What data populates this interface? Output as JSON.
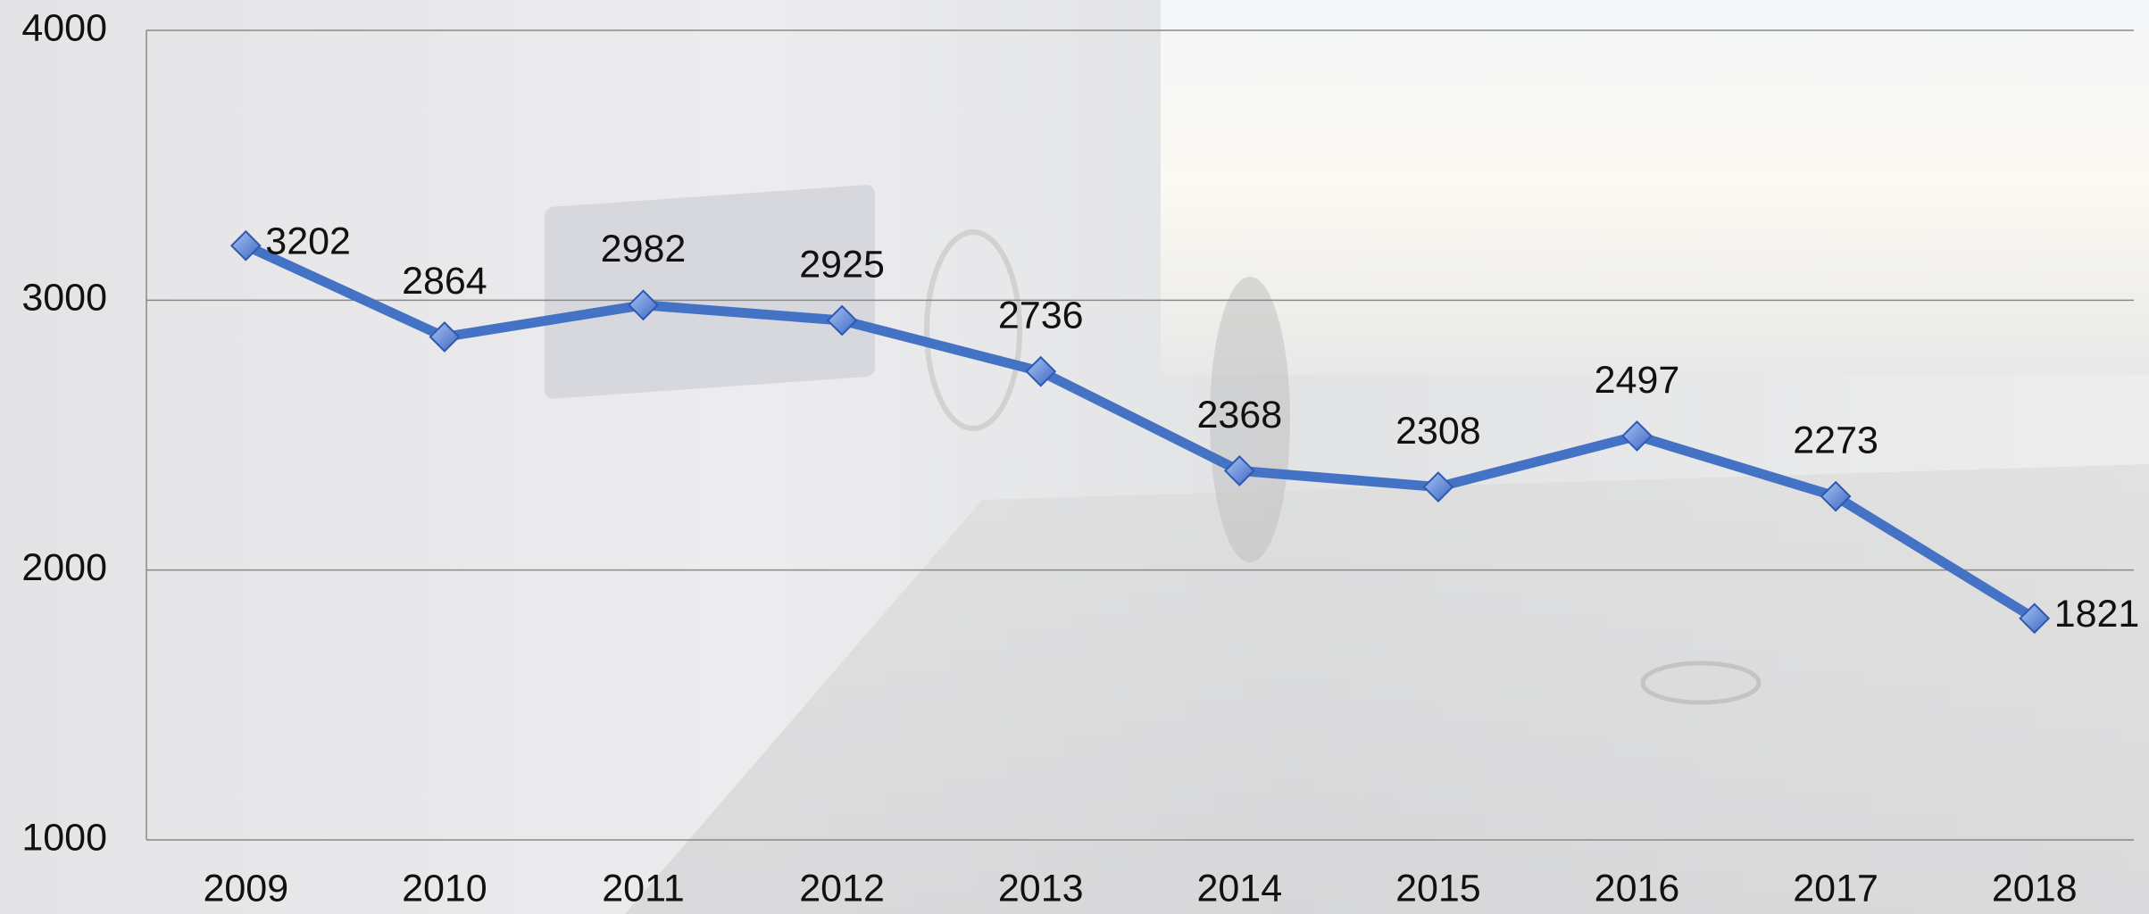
{
  "chart_data": {
    "type": "line",
    "categories": [
      "2009",
      "2010",
      "2011",
      "2012",
      "2013",
      "2014",
      "2015",
      "2016",
      "2017",
      "2018"
    ],
    "series": [
      {
        "color": "#4472c4",
        "values": [
          3202,
          2864,
          2982,
          2925,
          2736,
          2368,
          2308,
          2497,
          2273,
          1821
        ]
      }
    ],
    "ylim": [
      1000,
      4000
    ],
    "yticks": [
      1000,
      2000,
      3000,
      4000
    ],
    "grid": true
  }
}
